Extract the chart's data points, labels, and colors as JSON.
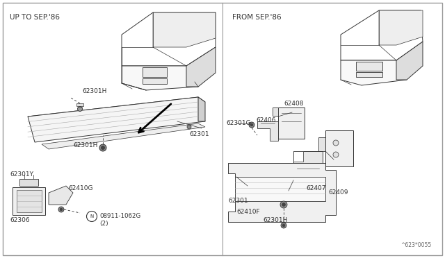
{
  "bg_color": "#ffffff",
  "title_left": "UP TO SEP.'86",
  "title_right": "FROM SEP.'86",
  "watermark": "^623*0055",
  "line_color": "#333333",
  "fill_light": "#f5f5f5",
  "fill_mid": "#e0e0e0",
  "fill_dark": "#cccccc"
}
